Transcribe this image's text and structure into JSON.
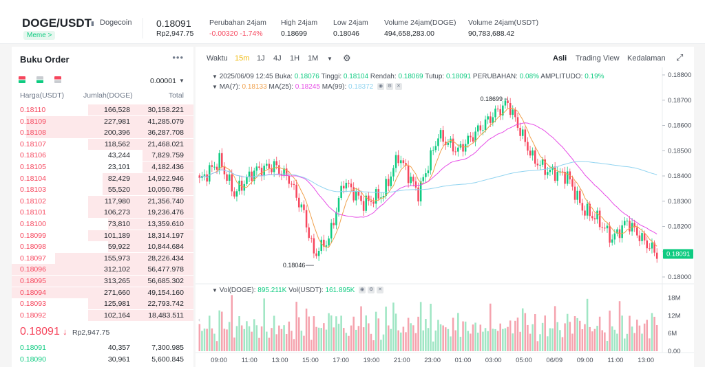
{
  "header": {
    "pair": "DOGE/USDT",
    "coin_name": "Dogecoin",
    "tag": "Meme >",
    "price": "0.18091",
    "price_fiat": "Rp2,947.75",
    "stats": [
      {
        "label": "Perubahan 24jam",
        "value": "-0.00320 -1.74%",
        "value_color": "#f6465d"
      },
      {
        "label": "High 24jam",
        "value": "0.18699",
        "value_color": "#1e2329"
      },
      {
        "label": "Low 24jam",
        "value": "0.18046",
        "value_color": "#1e2329"
      },
      {
        "label": "Volume 24jam(DOGE)",
        "value": "494,658,283.00",
        "value_color": "#1e2329"
      },
      {
        "label": "Volume 24jam(USDT)",
        "value": "90,783,688.42",
        "value_color": "#1e2329"
      }
    ]
  },
  "orderbook": {
    "title": "Buku Order",
    "more": "•••",
    "precision": "0.00001",
    "col_price": "Harga(USDT)",
    "col_qty": "Jumlah(DOGE)",
    "col_total": "Total",
    "asks": [
      {
        "p": "0.18110",
        "q": "166,528",
        "t": "30,158.221",
        "depth": 0.58
      },
      {
        "p": "0.18109",
        "q": "227,981",
        "t": "41,285.079",
        "depth": 0.92
      },
      {
        "p": "0.18108",
        "q": "200,396",
        "t": "36,287.708",
        "depth": 0.92
      },
      {
        "p": "0.18107",
        "q": "118,562",
        "t": "21,468.021",
        "depth": 0.58
      },
      {
        "p": "0.18106",
        "q": "43,244",
        "t": "7,829.759",
        "depth": 0.28
      },
      {
        "p": "0.18105",
        "q": "23,101",
        "t": "4,182.436",
        "depth": 0.28
      },
      {
        "p": "0.18104",
        "q": "82,429",
        "t": "14,922.946",
        "depth": 0.5
      },
      {
        "p": "0.18103",
        "q": "55,520",
        "t": "10,050.786",
        "depth": 0.5
      },
      {
        "p": "0.18102",
        "q": "117,980",
        "t": "21,356.740",
        "depth": 0.58
      },
      {
        "p": "0.18101",
        "q": "106,273",
        "t": "19,236.476",
        "depth": 0.58
      },
      {
        "p": "0.18100",
        "q": "73,810",
        "t": "13,359.610",
        "depth": 0.47
      },
      {
        "p": "0.18099",
        "q": "101,189",
        "t": "18,314.197",
        "depth": 0.58
      },
      {
        "p": "0.18098",
        "q": "59,922",
        "t": "10,844.684",
        "depth": 0.47
      },
      {
        "p": "0.18097",
        "q": "155,973",
        "t": "28,226.434",
        "depth": 0.76
      },
      {
        "p": "0.18096",
        "q": "312,102",
        "t": "56,477.978",
        "depth": 1.0
      },
      {
        "p": "0.18095",
        "q": "313,265",
        "t": "56,685.302",
        "depth": 1.0
      },
      {
        "p": "0.18094",
        "q": "271,660",
        "t": "49,154.160",
        "depth": 1.0
      },
      {
        "p": "0.18093",
        "q": "125,981",
        "t": "22,793.742",
        "depth": 0.58
      },
      {
        "p": "0.18092",
        "q": "102,164",
        "t": "18,483.511",
        "depth": 0.58
      }
    ],
    "last_price": "0.18091",
    "last_arrow": "↓",
    "last_fiat": "Rp2,947.75",
    "bids": [
      {
        "p": "0.18091",
        "q": "40,357",
        "t": "7,300.985"
      },
      {
        "p": "0.18090",
        "q": "30,961",
        "t": "5,600.845"
      }
    ]
  },
  "toolbar": {
    "time_label": "Waktu",
    "intervals": [
      "15m",
      "1J",
      "4J",
      "1H",
      "1M"
    ],
    "active_interval": "15m",
    "views": [
      "Asli",
      "Trading View",
      "Kedalaman"
    ],
    "active_view": "Asli"
  },
  "legend": {
    "ohlc_date": "2025/06/09 12:45",
    "open_label": "Buka:",
    "open": "0.18076",
    "high_label": "Tinggi:",
    "high": "0.18104",
    "low_label": "Rendah:",
    "low": "0.18069",
    "close_label": "Tutup:",
    "close": "0.18091",
    "chg_label": "PERUBAHAN:",
    "chg": "0.08%",
    "amp_label": "AMPLITUDO:",
    "amp": "0.19%",
    "ma7_label": "MA(7):",
    "ma7": "0.18133",
    "ma25_label": "MA(25):",
    "ma25": "0.18245",
    "ma99_label": "MA(99):",
    "ma99": "0.18372",
    "vol_doge_label": "Vol(DOGE):",
    "vol_doge": "895.211K",
    "vol_usdt_label": "Vol(USDT):",
    "vol_usdt": "161.895K"
  },
  "colors": {
    "up": "#0ecb81",
    "down": "#f6465d",
    "ma7": "#f0a04b",
    "ma25": "#e64ce6",
    "ma99": "#8fd3f0"
  },
  "chart_data": {
    "type": "candlestick",
    "price_axis": [
      "0.18800",
      "0.18700",
      "0.18600",
      "0.18500",
      "0.18400",
      "0.18300",
      "0.18200",
      "0.18100",
      "0.18000"
    ],
    "price_range": [
      0.18,
      0.188
    ],
    "volume_axis": [
      "18M",
      "12M",
      "6M",
      "0.00"
    ],
    "volume_range": [
      0,
      20
    ],
    "time_labels": [
      "09:00",
      "11:00",
      "13:00",
      "15:00",
      "17:00",
      "19:00",
      "21:00",
      "23:00",
      "01:00",
      "03:00",
      "05:00",
      "06/09",
      "09:00",
      "11:00",
      "13:00"
    ],
    "high_marker": "0.18699",
    "low_marker": "0.18046",
    "last_price_label": "0.18091"
  }
}
